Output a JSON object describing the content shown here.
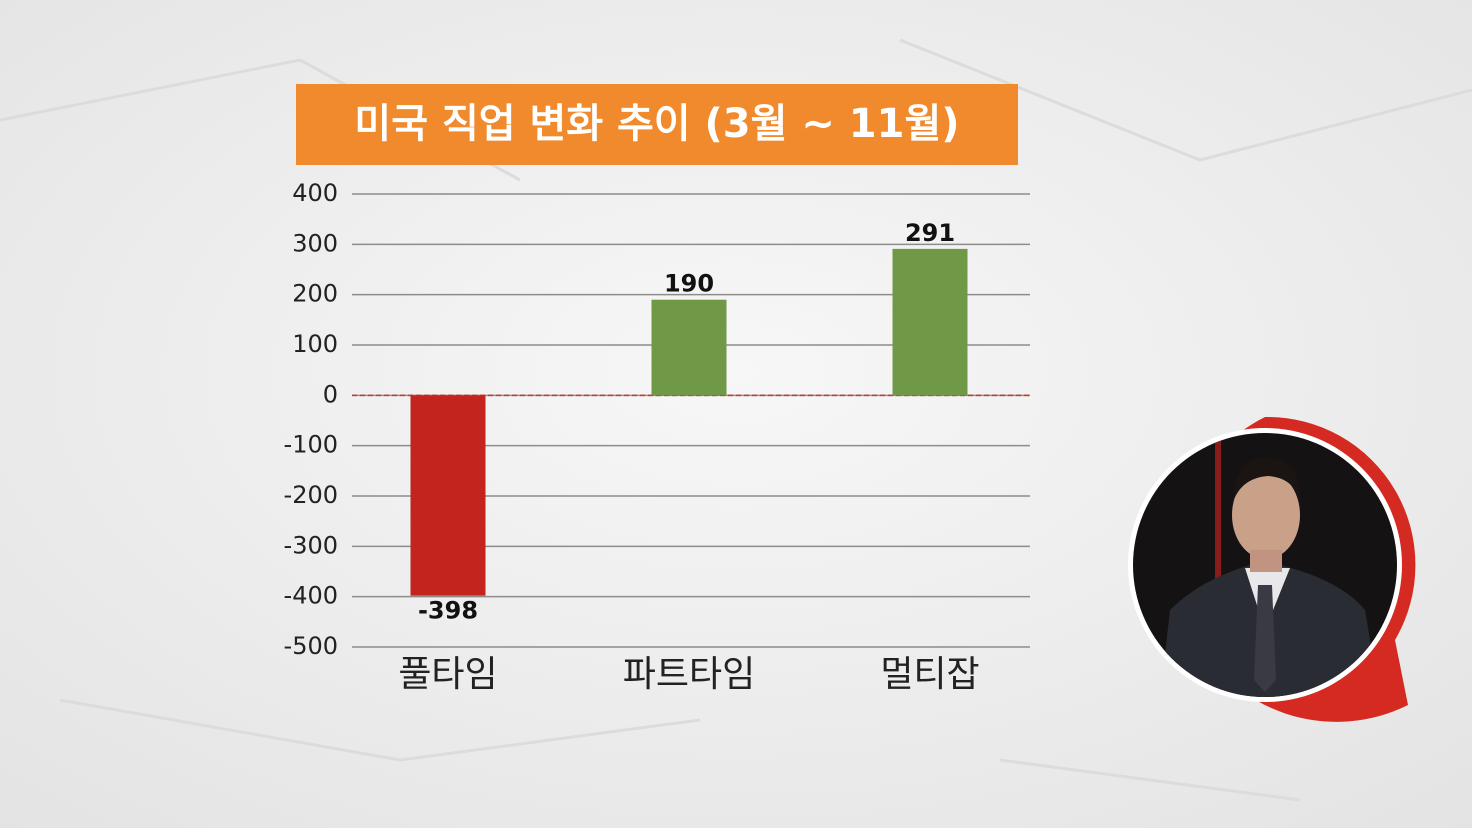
{
  "chart_data": {
    "type": "bar",
    "title": "미국 직업 변화 추이 (3월 ~ 11월)",
    "categories": [
      "풀타임",
      "파트타임",
      "멀티잡"
    ],
    "values": [
      -398,
      190,
      291
    ],
    "colors": [
      "#c3241d",
      "#6f9946",
      "#6f9946"
    ],
    "ylim": [
      -500,
      400
    ],
    "yticks": [
      -500,
      -400,
      -300,
      -200,
      -100,
      0,
      100,
      200,
      300,
      400
    ],
    "grid": true
  }
}
